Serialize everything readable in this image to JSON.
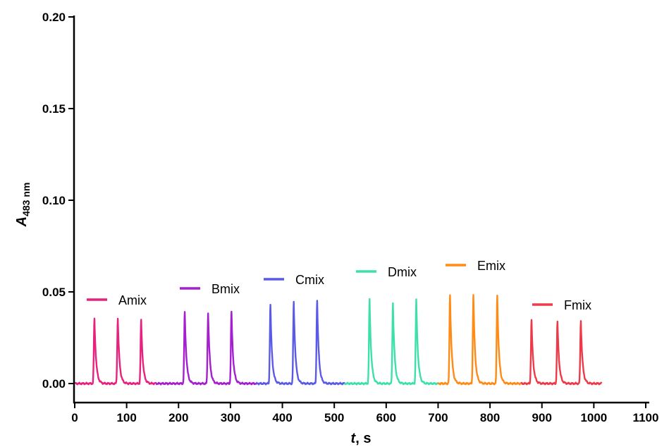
{
  "chart_data": {
    "type": "line",
    "title": "",
    "xlabel": {
      "main": "t",
      "rest": ", s"
    },
    "ylabel": {
      "main": "A",
      "sub": "483 nm"
    },
    "xlim": [
      0,
      1100
    ],
    "ylim": [
      0,
      0.2
    ],
    "xticks": [
      "0",
      "100",
      "200",
      "300",
      "400",
      "500",
      "600",
      "700",
      "800",
      "900",
      "1000",
      "1100"
    ],
    "yticks": [
      "0.00",
      "0.05",
      "0.10",
      "0.15",
      "0.20"
    ],
    "grid": false,
    "series": [
      {
        "name": "Amix",
        "color": "#e8207e",
        "range": [
          0,
          155
        ],
        "peaks": [
          [
            38,
            0.0355
          ],
          [
            83,
            0.0355
          ],
          [
            128,
            0.0348
          ]
        ]
      },
      {
        "name": "Bmix",
        "color": "#a51fd0",
        "range": [
          155,
          350
        ],
        "peaks": [
          [
            212,
            0.039
          ],
          [
            257,
            0.0385
          ],
          [
            302,
            0.039
          ]
        ]
      },
      {
        "name": "Cmix",
        "color": "#5a5ae6",
        "range": [
          350,
          520
        ],
        "peaks": [
          [
            377,
            0.043
          ],
          [
            422,
            0.0445
          ],
          [
            467,
            0.0455
          ]
        ]
      },
      {
        "name": "Dmix",
        "color": "#3de0a8",
        "range": [
          520,
          700
        ],
        "peaks": [
          [
            568,
            0.046
          ],
          [
            613,
            0.044
          ],
          [
            658,
            0.0458
          ]
        ]
      },
      {
        "name": "Emix",
        "color": "#ff8a14",
        "range": [
          700,
          860
        ],
        "peaks": [
          [
            723,
            0.0485
          ],
          [
            768,
            0.0482
          ],
          [
            814,
            0.0482
          ]
        ]
      },
      {
        "name": "Fmix",
        "color": "#ee3a48",
        "range": [
          860,
          1015
        ],
        "peaks": [
          [
            880,
            0.0345
          ],
          [
            930,
            0.0335
          ],
          [
            975,
            0.0345
          ]
        ]
      }
    ]
  }
}
